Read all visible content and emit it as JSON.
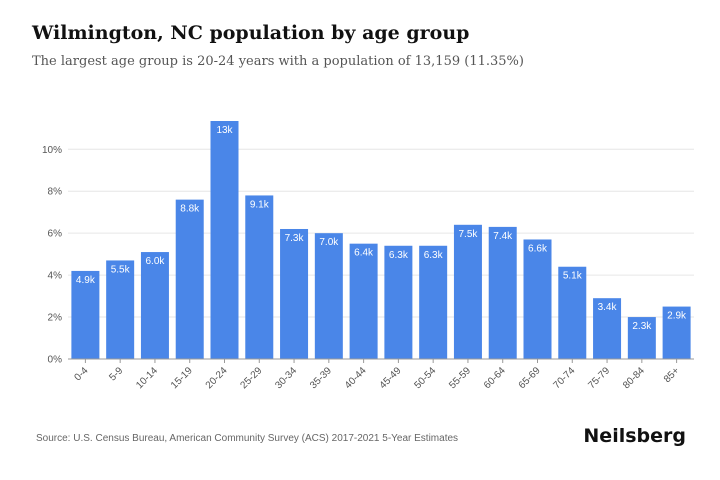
{
  "header": {
    "title": "Wilmington, NC population by age group",
    "subtitle": "The largest age group is 20-24 years with a population of 13,159 (11.35%)"
  },
  "footer": {
    "source": "Source: U.S. Census Bureau, American Community Survey (ACS) 2017-2021 5-Year Estimates",
    "brand": "Neilsberg"
  },
  "colors": {
    "bar": "#4a86e8",
    "grid": "#e6e6e6",
    "axis": "#999999"
  },
  "chart_data": {
    "type": "bar",
    "categories": [
      "0-4",
      "5-9",
      "10-14",
      "15-19",
      "20-24",
      "25-29",
      "30-34",
      "35-39",
      "40-44",
      "45-49",
      "50-54",
      "55-59",
      "60-64",
      "65-69",
      "70-74",
      "75-79",
      "80-84",
      "85+"
    ],
    "values": [
      4.2,
      4.7,
      5.1,
      7.6,
      11.35,
      7.8,
      6.2,
      6.0,
      5.5,
      5.4,
      5.4,
      6.4,
      6.3,
      5.7,
      4.4,
      2.9,
      2.0,
      2.5
    ],
    "data_labels": [
      "4.9k",
      "5.5k",
      "6.0k",
      "8.8k",
      "13k",
      "9.1k",
      "7.3k",
      "7.0k",
      "6.4k",
      "6.3k",
      "6.3k",
      "7.5k",
      "7.4k",
      "6.6k",
      "5.1k",
      "3.4k",
      "2.3k",
      "2.9k"
    ],
    "yticks": [
      "0%",
      "2%",
      "4%",
      "6%",
      "8%",
      "10%"
    ],
    "ylim": [
      0,
      11.35
    ],
    "grid": true,
    "legend": "none"
  }
}
